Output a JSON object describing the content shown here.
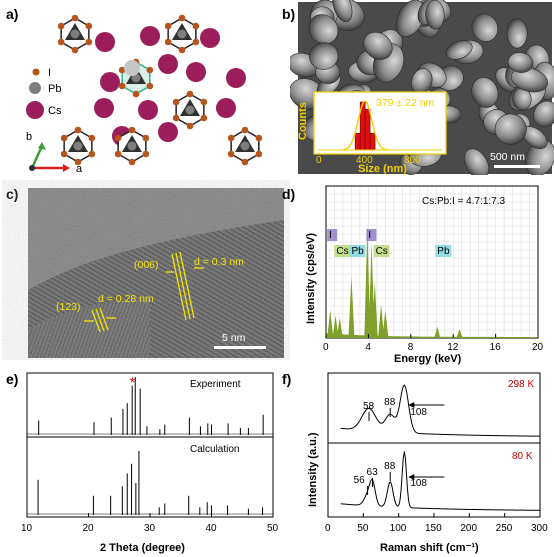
{
  "panels": {
    "a": {
      "label": "a)",
      "legend": [
        {
          "symbol": "I",
          "color": "#b8531b"
        },
        {
          "symbol": "Pb",
          "color": "#7d7d7d"
        },
        {
          "symbol": "Cs",
          "color": "#9b1e5a"
        }
      ],
      "axis_b": "b",
      "axis_a": "a"
    },
    "b": {
      "label": "b)",
      "inset_ylabel": "Counts",
      "inset_xlabel": "Size (nm)",
      "inset_xticks": [
        "0",
        "400",
        "800"
      ],
      "annotation": "379 ± 22 nm",
      "scale_bar": "500 nm"
    },
    "c": {
      "label": "c)",
      "plane1": "(006)",
      "d1": "d = 0.3 nm",
      "plane2": "(123)",
      "d2": "d = 0.28 nm",
      "scale_bar": "5 nm"
    },
    "d": {
      "label": "d)",
      "ylabel": "Intensity (cps/eV)",
      "xlabel": "Energy (keV)",
      "ratio_text": "Cs:Pb:I = 4.7:1:7.3",
      "element_labels": [
        "I",
        "Cs",
        "Pb",
        "I",
        "Cs",
        "Pb"
      ]
    },
    "e": {
      "label": "e)",
      "top_label": "Experiment",
      "bottom_label": "Calculation",
      "star": "*",
      "xlabel": "2 Theta (degree)"
    },
    "f": {
      "label": "f)",
      "ylabel": "Intensity (a.u.)",
      "xlabel": "Raman shift (cm⁻¹)",
      "temp_top": "298 K",
      "temp_bottom": "80 K",
      "top_peaks": [
        "58",
        "88",
        "108"
      ],
      "bottom_peaks": [
        "56",
        "63",
        "88",
        "108"
      ]
    }
  },
  "chart_data": [
    {
      "type": "bar",
      "panel": "b-inset",
      "xlabel": "Size (nm)",
      "ylabel": "Counts",
      "xlim": [
        0,
        1000
      ],
      "xticks": [
        0,
        400,
        800
      ],
      "bins": [
        320,
        360,
        400,
        440
      ],
      "counts": [
        0.35,
        1.0,
        0.85,
        0.35
      ],
      "fit_mean": 379,
      "fit_sd": 22,
      "annotation": "379 ± 22 nm"
    },
    {
      "type": "line",
      "panel": "d",
      "title": "Cs:Pb:I = 4.7:1:7.3",
      "xlabel": "Energy (keV)",
      "ylabel": "Intensity (cps/eV)",
      "xlim": [
        0,
        20
      ],
      "xticks": [
        0,
        4,
        8,
        12,
        16,
        20
      ],
      "grid": true,
      "peaks": [
        {
          "x": 0.4,
          "y": 0.25
        },
        {
          "x": 0.9,
          "y": 0.2
        },
        {
          "x": 1.3,
          "y": 0.18
        },
        {
          "x": 2.4,
          "y": 0.55
        },
        {
          "x": 3.9,
          "y": 1.0
        },
        {
          "x": 4.3,
          "y": 0.85
        },
        {
          "x": 4.6,
          "y": 0.5
        },
        {
          "x": 5.2,
          "y": 0.3
        },
        {
          "x": 5.6,
          "y": 0.25
        },
        {
          "x": 10.5,
          "y": 0.1
        },
        {
          "x": 12.6,
          "y": 0.08
        }
      ],
      "element_labels": [
        {
          "name": "I",
          "x": 0.3
        },
        {
          "name": "Cs",
          "x": 0.6
        },
        {
          "name": "Pb",
          "x": 2.4
        },
        {
          "name": "I",
          "x": 4.0
        },
        {
          "name": "Cs",
          "x": 4.3
        },
        {
          "name": "Pb",
          "x": 10.5
        }
      ]
    },
    {
      "type": "line",
      "panel": "e",
      "xlabel": "2 Theta (degree)",
      "xlim": [
        10,
        50
      ],
      "xticks": [
        10,
        20,
        30,
        40,
        50
      ],
      "series": [
        {
          "name": "Experiment",
          "peaks": [
            {
              "x": 11.9,
              "y": 0.25
            },
            {
              "x": 20.9,
              "y": 0.22
            },
            {
              "x": 23.7,
              "y": 0.3
            },
            {
              "x": 25.6,
              "y": 0.45
            },
            {
              "x": 26.3,
              "y": 0.55
            },
            {
              "x": 27.1,
              "y": 0.85
            },
            {
              "x": 27.6,
              "y": 1.0
            },
            {
              "x": 28.4,
              "y": 0.8
            },
            {
              "x": 29.5,
              "y": 0.15
            },
            {
              "x": 31.6,
              "y": 0.1
            },
            {
              "x": 32.4,
              "y": 0.18
            },
            {
              "x": 36.4,
              "y": 0.3
            },
            {
              "x": 38.2,
              "y": 0.15
            },
            {
              "x": 39.4,
              "y": 0.2
            },
            {
              "x": 40.0,
              "y": 0.18
            },
            {
              "x": 42.7,
              "y": 0.2
            },
            {
              "x": 44.7,
              "y": 0.12
            },
            {
              "x": 46.0,
              "y": 0.12
            },
            {
              "x": 48.4,
              "y": 0.35
            }
          ]
        },
        {
          "name": "Calculation",
          "peaks": [
            {
              "x": 11.8,
              "y": 0.55
            },
            {
              "x": 20.8,
              "y": 0.3
            },
            {
              "x": 23.6,
              "y": 0.3
            },
            {
              "x": 25.5,
              "y": 0.45
            },
            {
              "x": 26.3,
              "y": 0.65
            },
            {
              "x": 27.0,
              "y": 0.8
            },
            {
              "x": 27.7,
              "y": 0.5
            },
            {
              "x": 28.2,
              "y": 1.0
            },
            {
              "x": 31.5,
              "y": 0.12
            },
            {
              "x": 32.4,
              "y": 0.18
            },
            {
              "x": 36.3,
              "y": 0.3
            },
            {
              "x": 38.1,
              "y": 0.12
            },
            {
              "x": 39.3,
              "y": 0.2
            },
            {
              "x": 40.0,
              "y": 0.15
            },
            {
              "x": 42.6,
              "y": 0.15
            },
            {
              "x": 46.0,
              "y": 0.1
            },
            {
              "x": 48.3,
              "y": 0.12
            }
          ]
        }
      ],
      "star_at": 27.2
    },
    {
      "type": "line",
      "panel": "f",
      "xlabel": "Raman shift (cm⁻¹)",
      "ylabel": "Intensity (a.u.)",
      "xlim": [
        0,
        300
      ],
      "xticks": [
        0,
        50,
        100,
        150,
        200,
        250,
        300
      ],
      "series": [
        {
          "name": "298 K",
          "peaks": [
            58,
            88,
            108
          ]
        },
        {
          "name": "80 K",
          "peaks": [
            56,
            63,
            88,
            108
          ]
        }
      ]
    }
  ]
}
